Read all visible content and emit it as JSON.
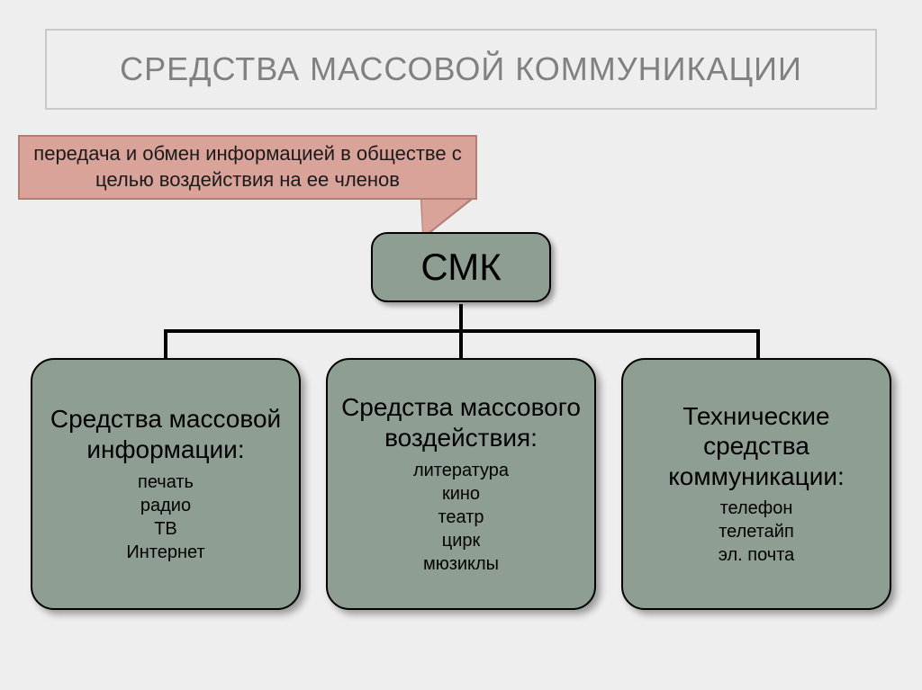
{
  "slide": {
    "background_color": "#eeeeee",
    "title_frame_border_color": "#c9c9c9",
    "title_color": "#808080",
    "title_fontsize": 36,
    "title": "СРЕДСТВА МАССОВОЙ КОММУНИКАЦИИ"
  },
  "callout": {
    "fill": "#d9a39a",
    "border": "#b27d74",
    "text_color": "#1a1a1a",
    "fontsize": 22,
    "text": "передача и обмен информацией в обществе с целью воздействия на ее членов"
  },
  "tree": {
    "type": "tree",
    "node_fill": "#8f9e93",
    "node_border": "#000000",
    "connector_color": "#000000",
    "connector_width": 4,
    "border_radius": 22,
    "shadow": "5px 5px 8px rgba(0,0,0,0.35)",
    "root": {
      "label": "СМК",
      "fontsize": 42
    },
    "children": [
      {
        "title": "Средства массовой информации:",
        "title_fontsize": 28,
        "items_fontsize": 20,
        "items": [
          "печать",
          "радио",
          "ТВ",
          "Интернет"
        ]
      },
      {
        "title": "Средства массового воздействия:",
        "title_fontsize": 28,
        "items_fontsize": 20,
        "items": [
          "литература",
          "кино",
          "театр",
          "цирк",
          "мюзиклы"
        ]
      },
      {
        "title": "Технические средства коммуникации:",
        "title_fontsize": 28,
        "items_fontsize": 20,
        "items": [
          "телефон",
          "телетайп",
          "эл. почта"
        ]
      }
    ]
  }
}
